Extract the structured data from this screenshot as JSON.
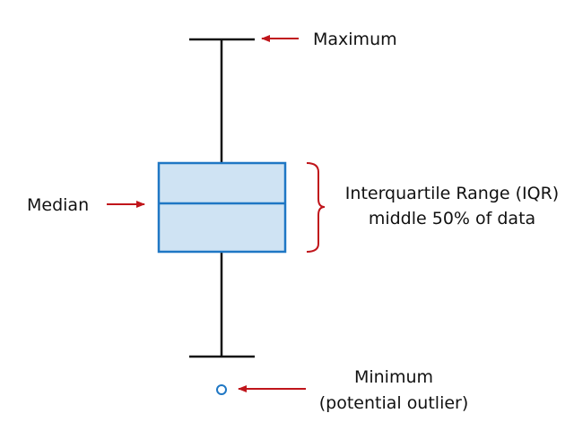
{
  "labels": {
    "maximum": "Maximum",
    "median": "Median",
    "iqr_line1": "Interquartile Range (IQR)",
    "iqr_line2": "middle 50% of data",
    "minimum_line1": "Minimum",
    "minimum_line2": "(potential outlier)"
  },
  "colors": {
    "box_fill": "#cfe3f3",
    "box_stroke": "#1f77c4",
    "whisker": "#111111",
    "annotation_arrow": "#c0151b",
    "outlier": "#1f77c4",
    "text": "#111111"
  }
}
